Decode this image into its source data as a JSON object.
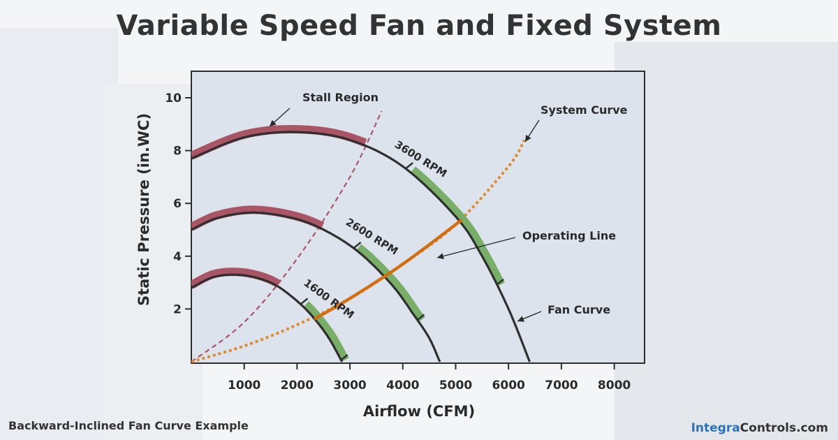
{
  "title": "Variable Speed Fan and Fixed System",
  "footer": {
    "caption": "Backward-Inclined Fan Curve Example",
    "brand_highlight": "Integra",
    "brand_rest": "Controls.com"
  },
  "colors": {
    "plot_bg": "#dde3ec",
    "fan_curve": "#2f2f2f",
    "stall_band": "#a95566",
    "efficient_band": "#79ae68",
    "stall_line": "#a95566",
    "operating_line": "#d16f12",
    "system_curve": "#dc8c32"
  },
  "chart_data": {
    "type": "line",
    "title": "Variable Speed Fan and Fixed System",
    "xlabel": "Airflow (CFM)",
    "ylabel": "Static Pressure (in.WC)",
    "xlim": [
      0,
      8500
    ],
    "ylim": [
      0,
      11
    ],
    "x_ticks": [
      1000,
      2000,
      3000,
      4000,
      5000,
      6000,
      7000,
      8000
    ],
    "y_ticks": [
      2,
      4,
      6,
      8,
      10
    ],
    "x_tick_labels": [
      "1000",
      "2000",
      "3000",
      "4000",
      "5000",
      "6000",
      "7000",
      "8000"
    ],
    "y_tick_labels": [
      "2",
      "4",
      "6",
      "8",
      "10"
    ],
    "grid": false,
    "fan_curves": [
      {
        "name": "3600 RPM",
        "x": [
          0,
          1000,
          2000,
          3000,
          4000,
          5000,
          5500,
          6000,
          6400
        ],
        "y": [
          7.7,
          8.5,
          8.7,
          8.4,
          7.4,
          5.5,
          4.0,
          2.0,
          0
        ],
        "stall_range": [
          0,
          3300
        ],
        "efficient_range": [
          4100,
          5800
        ]
      },
      {
        "name": "2600 RPM",
        "x": [
          0,
          500,
          1200,
          2000,
          2600,
          3200,
          3800,
          4200,
          4500,
          4700
        ],
        "y": [
          5.0,
          5.45,
          5.65,
          5.4,
          4.9,
          4.1,
          2.9,
          1.8,
          0.9,
          0
        ],
        "stall_range": [
          0,
          2500
        ],
        "efficient_range": [
          3100,
          4300
        ]
      },
      {
        "name": "1600 RPM",
        "x": [
          0,
          400,
          800,
          1200,
          1600,
          2000,
          2300,
          2600,
          2850
        ],
        "y": [
          2.8,
          3.2,
          3.3,
          3.2,
          2.9,
          2.3,
          1.7,
          0.9,
          0
        ],
        "stall_range": [
          0,
          1650
        ],
        "efficient_range": [
          2100,
          2850
        ]
      }
    ],
    "stall_line": {
      "x": [
        0,
        1000,
        2000,
        3000,
        3600
      ],
      "y": [
        0,
        1.5,
        3.9,
        7.0,
        9.5
      ]
    },
    "system_curve": {
      "x": [
        0,
        1000,
        2000,
        3000,
        4000,
        5000,
        6000,
        6300
      ],
      "y": [
        0,
        0.6,
        1.4,
        2.4,
        3.7,
        5.2,
        7.4,
        8.4
      ]
    },
    "operating_line": {
      "x": [
        2350,
        3000,
        4000,
        5100
      ],
      "y": [
        1.65,
        2.4,
        3.7,
        5.35
      ]
    },
    "annotations": [
      {
        "text": "Stall Region",
        "points_to": [
          1500,
          8.8
        ]
      },
      {
        "text": "System Curve",
        "points_to": [
          6300,
          8.4
        ]
      },
      {
        "text": "Operating Line",
        "points_to": [
          4600,
          3.9
        ]
      },
      {
        "text": "Fan Curve",
        "points_to": [
          6250,
          1.2
        ]
      }
    ],
    "curve_labels": [
      "3600 RPM",
      "2600 RPM",
      "1600 RPM"
    ]
  }
}
